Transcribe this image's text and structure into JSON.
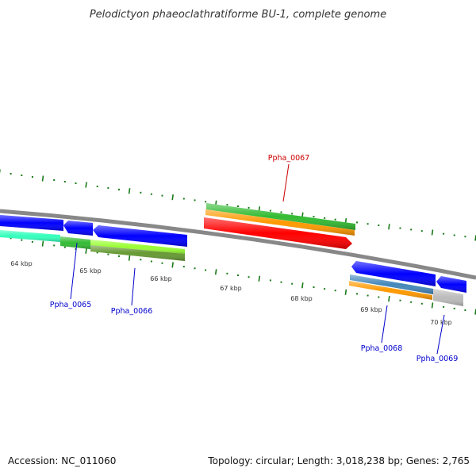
{
  "title": "Pelodictyon phaeoclathratiforme BU-1, complete genome",
  "accession": "Accession: NC_011060",
  "genome_info": "Topology: circular; Length: 3,018,238 bp; Genes: 2,765",
  "colors": {
    "background": "#ffffff",
    "backbone": "#888888",
    "ticks": "#1a7a1a",
    "gene_label_default": "#0000cc",
    "gene_label_highlight": "#cc0000"
  },
  "scale_labels": [
    "64 kbp",
    "65 kbp",
    "66 kbp",
    "67 kbp",
    "68 kbp",
    "69 kbp",
    "70 kbp"
  ],
  "gene_labels": [
    {
      "name": "Ppha_0065",
      "color": "#0000cc"
    },
    {
      "name": "Ppha_0066",
      "color": "#0000cc"
    },
    {
      "name": "Ppha_0067",
      "color": "#cc0000"
    },
    {
      "name": "Ppha_0068",
      "color": "#0000cc"
    },
    {
      "name": "Ppha_0069",
      "color": "#0000cc"
    }
  ],
  "feature_colors": {
    "cds": "#0000ff",
    "red_cds": "#ff0000",
    "green": "#33bb33",
    "orange": "#ff9900",
    "teal": "#33ffbb",
    "lime": "#99ff33",
    "olive": "#669933",
    "steel": "#4488bb",
    "gray": "#bbbbbb"
  }
}
